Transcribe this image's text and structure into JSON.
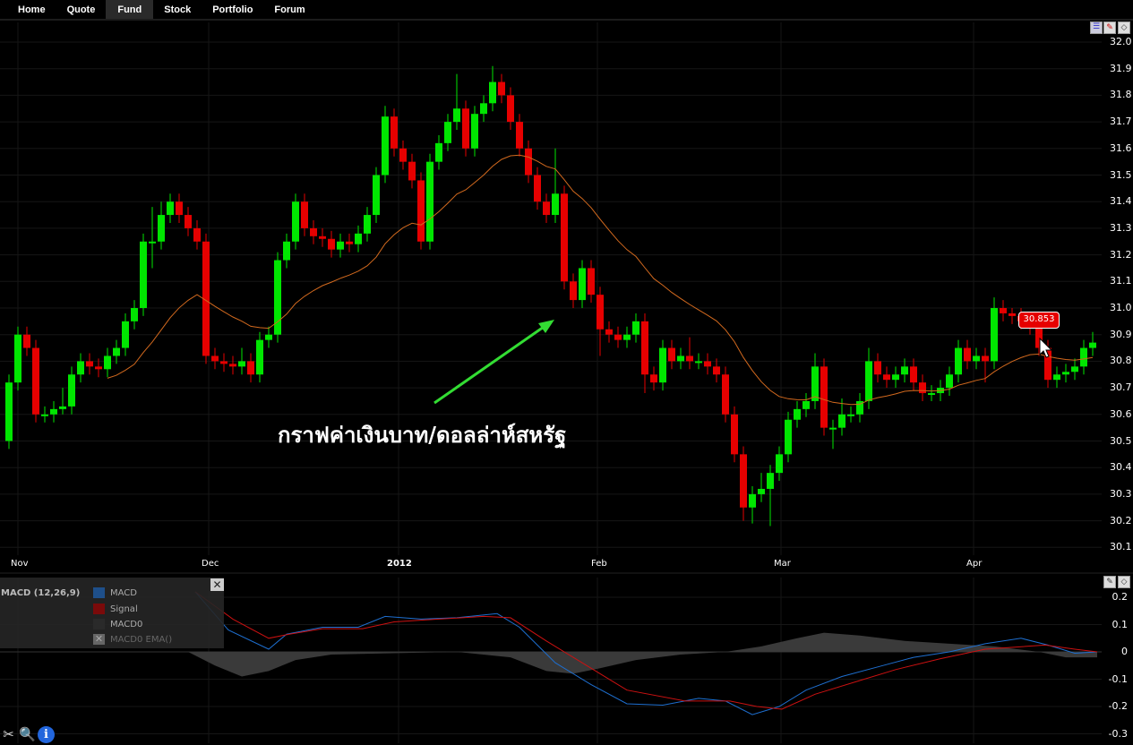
{
  "nav": {
    "items": [
      {
        "label": "Home",
        "active": false
      },
      {
        "label": "Quote",
        "active": false
      },
      {
        "label": "Fund",
        "active": true
      },
      {
        "label": "Stock",
        "active": false
      },
      {
        "label": "Portfolio",
        "active": false
      },
      {
        "label": "Forum",
        "active": false
      }
    ]
  },
  "annotation": {
    "text": "กราฟค่าเงินบาท/ดอลล่าห์สหรัฐ",
    "arrow_color": "#33dd33"
  },
  "price_tag": {
    "value": "30.853",
    "color": "#e60000"
  },
  "colors": {
    "up": "#00e600",
    "down": "#e60000",
    "ema": "#d2691e",
    "macd": "#1e6fd0",
    "signal": "#cc1111",
    "macd0": "#3a3a3a",
    "grid": "#161616"
  },
  "chart_data": [
    {
      "type": "candlestick",
      "y_ticks": [
        "32.0",
        "31.9",
        "31.8",
        "31.7",
        "31.6",
        "31.5",
        "31.4",
        "31.3",
        "31.2",
        "31.1",
        "31.0",
        "30.9",
        "30.8",
        "30.7",
        "30.6",
        "30.5",
        "30.4",
        "30.3",
        "30.2",
        "30.1"
      ],
      "ylim": [
        30.05,
        32.0
      ],
      "x_labels": [
        "Nov",
        "Dec",
        "2012",
        "Feb",
        "Mar",
        "Apr"
      ],
      "overlay": "EMA",
      "candles": [
        [
          30.5,
          30.75,
          30.47,
          30.72
        ],
        [
          30.72,
          30.93,
          30.69,
          30.9
        ],
        [
          30.9,
          30.93,
          30.82,
          30.85
        ],
        [
          30.85,
          30.88,
          30.57,
          30.6
        ],
        [
          30.6,
          30.63,
          30.57,
          30.6
        ],
        [
          30.6,
          30.65,
          30.57,
          30.62
        ],
        [
          30.62,
          30.7,
          30.6,
          30.63
        ],
        [
          30.63,
          30.78,
          30.6,
          30.75
        ],
        [
          30.75,
          30.83,
          30.72,
          30.8
        ],
        [
          30.8,
          30.83,
          30.75,
          30.78
        ],
        [
          30.78,
          30.81,
          30.74,
          30.77
        ],
        [
          30.77,
          30.85,
          30.74,
          30.82
        ],
        [
          30.82,
          30.88,
          30.79,
          30.85
        ],
        [
          30.85,
          30.98,
          30.82,
          30.95
        ],
        [
          30.95,
          31.03,
          30.92,
          31.0
        ],
        [
          31.0,
          31.28,
          30.97,
          31.25
        ],
        [
          31.25,
          31.38,
          31.15,
          31.25
        ],
        [
          31.25,
          31.4,
          31.22,
          31.35
        ],
        [
          31.35,
          31.43,
          31.32,
          31.4
        ],
        [
          31.4,
          31.43,
          31.32,
          31.35
        ],
        [
          31.35,
          31.38,
          31.27,
          31.3
        ],
        [
          31.3,
          31.33,
          31.22,
          31.25
        ],
        [
          31.25,
          31.28,
          30.79,
          30.82
        ],
        [
          30.82,
          30.85,
          30.77,
          30.8
        ],
        [
          30.8,
          30.83,
          30.76,
          30.79
        ],
        [
          30.79,
          30.82,
          30.75,
          30.78
        ],
        [
          30.78,
          30.85,
          30.75,
          30.8
        ],
        [
          30.8,
          30.83,
          30.72,
          30.75
        ],
        [
          30.75,
          30.91,
          30.72,
          30.88
        ],
        [
          30.88,
          30.93,
          30.85,
          30.9
        ],
        [
          30.9,
          31.21,
          30.87,
          31.18
        ],
        [
          31.18,
          31.28,
          31.15,
          31.25
        ],
        [
          31.25,
          31.43,
          31.22,
          31.4
        ],
        [
          31.4,
          31.43,
          31.27,
          31.3
        ],
        [
          31.3,
          31.33,
          31.24,
          31.27
        ],
        [
          31.27,
          31.3,
          31.23,
          31.26
        ],
        [
          31.26,
          31.29,
          31.19,
          31.22
        ],
        [
          31.22,
          31.28,
          31.19,
          31.25
        ],
        [
          31.25,
          31.28,
          31.21,
          31.24
        ],
        [
          31.24,
          31.31,
          31.21,
          31.28
        ],
        [
          31.28,
          31.38,
          31.25,
          31.35
        ],
        [
          31.35,
          31.53,
          31.32,
          31.5
        ],
        [
          31.5,
          31.76,
          31.47,
          31.72
        ],
        [
          31.72,
          31.75,
          31.57,
          31.6
        ],
        [
          31.6,
          31.63,
          31.52,
          31.55
        ],
        [
          31.55,
          31.58,
          31.45,
          31.48
        ],
        [
          31.48,
          31.51,
          31.22,
          31.25
        ],
        [
          31.25,
          31.58,
          31.22,
          31.55
        ],
        [
          31.55,
          31.65,
          31.52,
          31.62
        ],
        [
          31.62,
          31.73,
          31.59,
          31.7
        ],
        [
          31.7,
          31.88,
          31.67,
          31.75
        ],
        [
          31.75,
          31.78,
          31.57,
          31.6
        ],
        [
          31.6,
          31.76,
          31.57,
          31.73
        ],
        [
          31.73,
          31.8,
          31.7,
          31.77
        ],
        [
          31.77,
          31.91,
          31.74,
          31.85
        ],
        [
          31.85,
          31.88,
          31.77,
          31.8
        ],
        [
          31.8,
          31.83,
          31.67,
          31.7
        ],
        [
          31.7,
          31.73,
          31.57,
          31.6
        ],
        [
          31.6,
          31.63,
          31.47,
          31.5
        ],
        [
          31.5,
          31.53,
          31.37,
          31.4
        ],
        [
          31.4,
          31.43,
          31.32,
          31.35
        ],
        [
          31.35,
          31.6,
          31.32,
          31.43
        ],
        [
          31.43,
          31.46,
          31.07,
          31.1
        ],
        [
          31.1,
          31.13,
          31.0,
          31.03
        ],
        [
          31.03,
          31.18,
          31.0,
          31.15
        ],
        [
          31.15,
          31.18,
          31.02,
          31.05
        ],
        [
          31.05,
          31.08,
          30.82,
          30.92
        ],
        [
          30.92,
          30.95,
          30.87,
          30.9
        ],
        [
          30.9,
          30.93,
          30.85,
          30.88
        ],
        [
          30.88,
          30.93,
          30.85,
          30.9
        ],
        [
          30.9,
          30.98,
          30.87,
          30.95
        ],
        [
          30.95,
          30.98,
          30.68,
          30.75
        ],
        [
          30.75,
          30.78,
          30.69,
          30.72
        ],
        [
          30.72,
          30.88,
          30.69,
          30.85
        ],
        [
          30.85,
          30.88,
          30.77,
          30.8
        ],
        [
          30.8,
          30.85,
          30.77,
          30.82
        ],
        [
          30.82,
          30.89,
          30.77,
          30.8
        ],
        [
          30.8,
          30.83,
          30.77,
          30.8
        ],
        [
          30.8,
          30.83,
          30.75,
          30.78
        ],
        [
          30.78,
          30.81,
          30.72,
          30.75
        ],
        [
          30.75,
          30.78,
          30.57,
          30.6
        ],
        [
          30.6,
          30.63,
          30.42,
          30.45
        ],
        [
          30.45,
          30.48,
          30.2,
          30.25
        ],
        [
          30.25,
          30.33,
          30.19,
          30.3
        ],
        [
          30.3,
          30.38,
          30.27,
          30.32
        ],
        [
          30.32,
          30.41,
          30.18,
          30.38
        ],
        [
          30.38,
          30.48,
          30.35,
          30.45
        ],
        [
          30.45,
          30.61,
          30.42,
          30.58
        ],
        [
          30.58,
          30.65,
          30.55,
          30.62
        ],
        [
          30.62,
          30.68,
          30.59,
          30.65
        ],
        [
          30.65,
          30.83,
          30.62,
          30.78
        ],
        [
          30.78,
          30.81,
          30.52,
          30.55
        ],
        [
          30.55,
          30.58,
          30.47,
          30.55
        ],
        [
          30.55,
          30.66,
          30.52,
          30.6
        ],
        [
          30.6,
          30.63,
          30.57,
          30.6
        ],
        [
          30.6,
          30.68,
          30.57,
          30.65
        ],
        [
          30.65,
          30.85,
          30.62,
          30.8
        ],
        [
          30.8,
          30.83,
          30.72,
          30.75
        ],
        [
          30.75,
          30.78,
          30.7,
          30.73
        ],
        [
          30.73,
          30.78,
          30.7,
          30.75
        ],
        [
          30.75,
          30.81,
          30.72,
          30.78
        ],
        [
          30.78,
          30.81,
          30.69,
          30.72
        ],
        [
          30.72,
          30.75,
          30.65,
          30.68
        ],
        [
          30.68,
          30.71,
          30.65,
          30.68
        ],
        [
          30.68,
          30.73,
          30.65,
          30.7
        ],
        [
          30.7,
          30.78,
          30.67,
          30.75
        ],
        [
          30.75,
          30.88,
          30.72,
          30.85
        ],
        [
          30.85,
          30.88,
          30.77,
          30.8
        ],
        [
          30.8,
          30.85,
          30.77,
          30.82
        ],
        [
          30.82,
          30.85,
          30.72,
          30.8
        ],
        [
          30.8,
          31.04,
          30.77,
          31.0
        ],
        [
          31.0,
          31.03,
          30.95,
          30.98
        ],
        [
          30.98,
          31.0,
          30.94,
          30.97
        ],
        [
          30.97,
          31.0,
          30.92,
          30.95
        ],
        [
          30.95,
          30.98,
          30.9,
          30.93
        ],
        [
          30.93,
          30.96,
          30.82,
          30.85
        ],
        [
          30.85,
          30.88,
          30.7,
          30.73
        ],
        [
          30.73,
          30.78,
          30.7,
          30.75
        ],
        [
          30.75,
          30.79,
          30.72,
          30.76
        ],
        [
          30.76,
          30.81,
          30.73,
          30.78
        ],
        [
          30.78,
          30.88,
          30.75,
          30.85
        ],
        [
          30.85,
          30.91,
          30.82,
          30.87
        ]
      ]
    },
    {
      "type": "line",
      "title": "MACD (12,26,9)",
      "legend": [
        {
          "label": "MACD",
          "color": "#1e4f8a"
        },
        {
          "label": "Signal",
          "color": "#7a0a0a"
        },
        {
          "label": "MACD0",
          "color": "#2a2a2a"
        },
        {
          "label": "MACD0 EMA()",
          "color": "#666666",
          "disabled": true
        }
      ],
      "y_ticks": [
        "0.2",
        "0.1",
        "0",
        "-0.1",
        "-0.2",
        "-0.3"
      ],
      "ylim": [
        -0.3,
        0.2
      ],
      "macd": [
        [
          20.8,
          0.22
        ],
        [
          24.5,
          0.08
        ],
        [
          29,
          0.01
        ],
        [
          31,
          0.065
        ],
        [
          35,
          0.09
        ],
        [
          39,
          0.09
        ],
        [
          42,
          0.13
        ],
        [
          46,
          0.12
        ],
        [
          50,
          0.125
        ],
        [
          54.5,
          0.14
        ],
        [
          57,
          0.09
        ],
        [
          61,
          -0.04
        ],
        [
          65,
          -0.12
        ],
        [
          69,
          -0.19
        ],
        [
          73,
          -0.195
        ],
        [
          77,
          -0.17
        ],
        [
          80,
          -0.18
        ],
        [
          83,
          -0.23
        ],
        [
          86,
          -0.2
        ],
        [
          89,
          -0.14
        ],
        [
          93,
          -0.09
        ],
        [
          97,
          -0.055
        ],
        [
          101,
          -0.02
        ],
        [
          105,
          0
        ],
        [
          109,
          0.03
        ],
        [
          113,
          0.05
        ],
        [
          116,
          0.025
        ],
        [
          119,
          -0.005
        ],
        [
          121.5,
          0
        ]
      ],
      "signal": [
        [
          20.8,
          0.22
        ],
        [
          25,
          0.12
        ],
        [
          29,
          0.05
        ],
        [
          31.3,
          0.065
        ],
        [
          35,
          0.085
        ],
        [
          39.5,
          0.085
        ],
        [
          43,
          0.11
        ],
        [
          48,
          0.12
        ],
        [
          53,
          0.13
        ],
        [
          56,
          0.125
        ],
        [
          60,
          0.04
        ],
        [
          64,
          -0.04
        ],
        [
          69,
          -0.14
        ],
        [
          75.5,
          -0.18
        ],
        [
          80.5,
          -0.18
        ],
        [
          83.5,
          -0.2
        ],
        [
          86.3,
          -0.21
        ],
        [
          90,
          -0.155
        ],
        [
          95,
          -0.105
        ],
        [
          99,
          -0.065
        ],
        [
          104,
          -0.025
        ],
        [
          109,
          0.01
        ],
        [
          115.7,
          0.025
        ],
        [
          119,
          0.01
        ],
        [
          121.5,
          0
        ]
      ],
      "macd0": [
        [
          20,
          0
        ],
        [
          23,
          -0.05
        ],
        [
          26,
          -0.09
        ],
        [
          29,
          -0.07
        ],
        [
          32,
          -0.03
        ],
        [
          36,
          -0.01
        ],
        [
          50,
          0
        ],
        [
          56,
          -0.02
        ],
        [
          60,
          -0.07
        ],
        [
          63,
          -0.08
        ],
        [
          66,
          -0.06
        ],
        [
          70,
          -0.03
        ],
        [
          75,
          -0.01
        ],
        [
          80,
          0
        ],
        [
          84,
          0.02
        ],
        [
          88,
          0.05
        ],
        [
          91,
          0.07
        ],
        [
          95,
          0.06
        ],
        [
          100,
          0.04
        ],
        [
          105,
          0.03
        ],
        [
          110,
          0.02
        ],
        [
          115,
          0
        ],
        [
          118,
          -0.02
        ],
        [
          121.5,
          -0.02
        ]
      ]
    }
  ],
  "icons": {
    "bottom": [
      "tools-icon",
      "zoom-icon",
      "info-icon"
    ]
  }
}
